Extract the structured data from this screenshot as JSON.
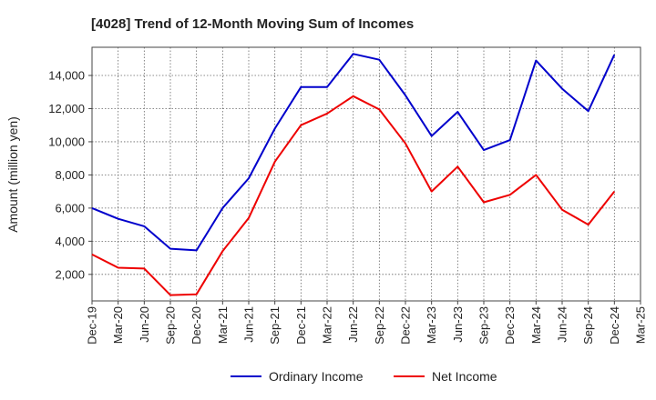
{
  "chart_data": {
    "type": "line",
    "title": "[4028]  Trend of 12-Month Moving Sum of Incomes",
    "xlabel": "",
    "ylabel": "Amount (million yen)",
    "ylim": [
      400,
      15700
    ],
    "yticks": [
      2000,
      4000,
      6000,
      8000,
      10000,
      12000,
      14000
    ],
    "ytick_labels": [
      "2,000",
      "4,000",
      "6,000",
      "8,000",
      "10,000",
      "12,000",
      "14,000"
    ],
    "categories": [
      "Dec-19",
      "Mar-20",
      "Jun-20",
      "Sep-20",
      "Dec-20",
      "Mar-21",
      "Jun-21",
      "Sep-21",
      "Dec-21",
      "Mar-22",
      "Jun-22",
      "Sep-22",
      "Dec-22",
      "Mar-23",
      "Jun-23",
      "Sep-23",
      "Dec-23",
      "Mar-24",
      "Jun-24",
      "Sep-24",
      "Dec-24",
      "Mar-25"
    ],
    "grid": true,
    "legend_position": "bottom",
    "series": [
      {
        "name": "Ordinary Income",
        "color": "#0000cc",
        "values": [
          6000,
          5350,
          4900,
          3550,
          3450,
          6000,
          7800,
          10800,
          13300,
          13300,
          15300,
          14950,
          12800,
          10350,
          11800,
          9500,
          10100,
          14900,
          13200,
          11850,
          15250,
          null
        ]
      },
      {
        "name": "Net Income",
        "color": "#ee0000",
        "values": [
          3200,
          2400,
          2350,
          750,
          800,
          3400,
          5400,
          8800,
          11000,
          11700,
          12750,
          11950,
          9900,
          7000,
          8500,
          6350,
          6800,
          8000,
          5900,
          5000,
          7000,
          null
        ]
      }
    ]
  }
}
